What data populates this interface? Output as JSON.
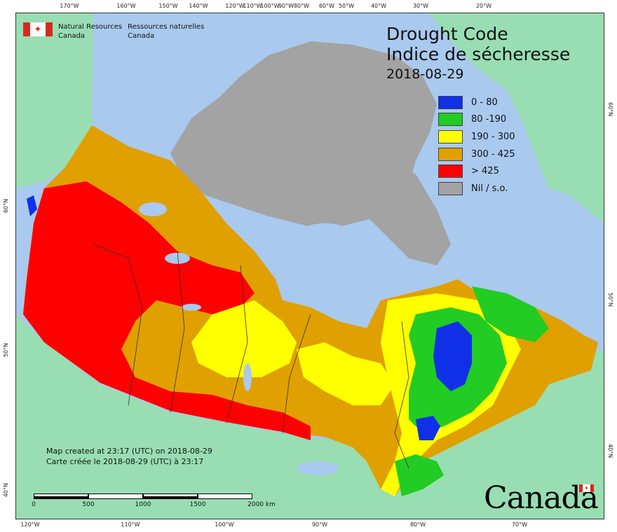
{
  "agency": {
    "en_line1": "Natural Resources",
    "en_line2": "Canada",
    "fr_line1": "Ressources naturelles",
    "fr_line2": "Canada"
  },
  "title": {
    "en": "Drought Code",
    "fr": "Indice de sécheresse",
    "date": "2018-08-29"
  },
  "legend": [
    {
      "label": "0 - 80",
      "color": "#1030e8"
    },
    {
      "label": "80 -190",
      "color": "#22cc22"
    },
    {
      "label": "190 - 300",
      "color": "#ffff00"
    },
    {
      "label": "300 - 425",
      "color": "#e0a000"
    },
    {
      "label": "> 425",
      "color": "#ff0000"
    },
    {
      "label": "Nil / s.o.",
      "color": "#a3a3a3"
    }
  ],
  "colors": {
    "ocean": "#a9c9ee",
    "foreign_land": "#98deb2",
    "no_data": "#a3a3a3",
    "lakes": "#a9c9ee"
  },
  "top_ticks": [
    "170°W",
    "160°W",
    "150°W",
    "140°W",
    "120°W",
    "110°W",
    "100°W",
    "90°W",
    "80°W",
    "60°W",
    "50°W",
    "40°W",
    "30°W",
    "20°W"
  ],
  "bottom_ticks": [
    "120°W",
    "110°W",
    "100°W",
    "90°W",
    "80°W",
    "70°W"
  ],
  "left_ticks": [
    "60°N",
    "50°N",
    "40°N"
  ],
  "right_ticks": [
    "60°N",
    "50°N",
    "40°N"
  ],
  "credits": {
    "line_en": "Map created at 23:17 (UTC) on 2018-08-29",
    "line_fr": "Carte créée le 2018-08-29 (UTC) à 23:17"
  },
  "scale": {
    "labels": [
      "0",
      "500",
      "1000",
      "1500",
      "2000  km"
    ]
  },
  "wordmark": "Canada"
}
